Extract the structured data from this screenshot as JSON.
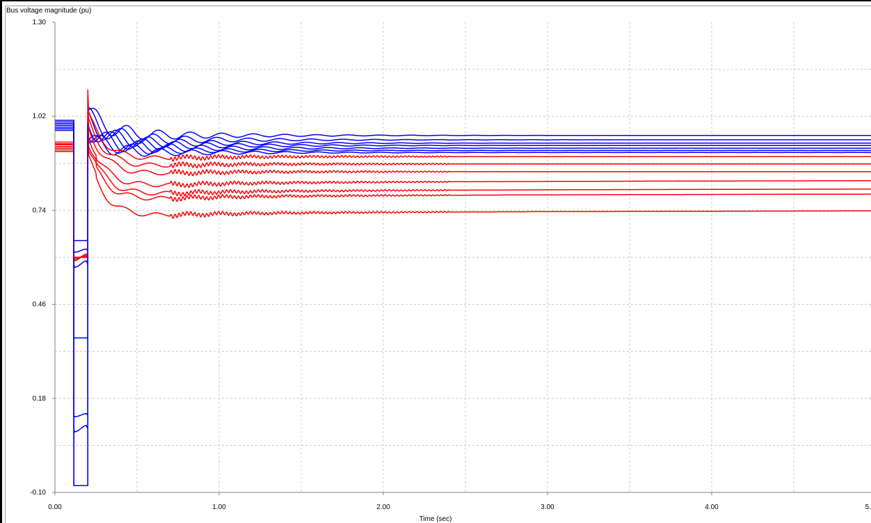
{
  "chart_data": {
    "type": "line",
    "title": "",
    "ylabel": "Bus voltage magnitude (pu)",
    "xlabel": "Time (sec)",
    "xlim": [
      0,
      5
    ],
    "ylim": [
      -0.1,
      1.3
    ],
    "x_ticks": [
      0,
      1,
      2,
      3,
      4,
      5
    ],
    "x_tick_labels": [
      "0.00",
      "1.00",
      "2.00",
      "3.00",
      "4.00",
      "5."
    ],
    "y_ticks": [
      -0.1,
      0.18,
      0.46,
      0.74,
      1.02,
      1.3
    ],
    "y_tick_labels": [
      "-0.10",
      "0.18",
      "0.46",
      "0.74",
      "1.02",
      "1.30"
    ],
    "grid": true,
    "legend": "none",
    "colors": {
      "blue": "#0000ff",
      "red": "#ff0000",
      "grid": "#c8c8c8"
    },
    "series": [
      {
        "color": "#0000ff",
        "pre": 1.008,
        "fault": 0.65,
        "peak": 1.045,
        "osc": 0.03,
        "final": 0.963
      },
      {
        "color": "#0000ff",
        "pre": 1.003,
        "fault": 0.62,
        "peak": 1.03,
        "osc": 0.03,
        "final": 0.95
      },
      {
        "color": "#0000ff",
        "pre": 0.998,
        "fault": 0.58,
        "peak": 1.02,
        "osc": 0.03,
        "final": 0.94
      },
      {
        "color": "#0000ff",
        "pre": 0.993,
        "fault": 0.36,
        "peak": 1.0,
        "osc": 0.03,
        "final": 0.933
      },
      {
        "color": "#0000ff",
        "pre": 0.988,
        "fault": 0.13,
        "peak": 0.99,
        "osc": 0.03,
        "final": 0.925
      },
      {
        "color": "#0000ff",
        "pre": 0.983,
        "fault": 0.09,
        "peak": 0.97,
        "osc": 0.025,
        "final": 0.918
      },
      {
        "color": "#0000ff",
        "pre": 0.978,
        "fault": -0.08,
        "peak": 0.96,
        "osc": 0.025,
        "final": 0.912
      },
      {
        "color": "#ff0000",
        "pre": 0.943,
        "fault": 0.6,
        "peak": 1.1,
        "osc": 0.012,
        "final": 0.9
      },
      {
        "color": "#ff0000",
        "pre": 0.938,
        "fault": 0.6,
        "peak": 1.08,
        "osc": 0.012,
        "final": 0.878
      },
      {
        "color": "#ff0000",
        "pre": 0.935,
        "fault": 0.6,
        "peak": 1.06,
        "osc": 0.012,
        "final": 0.855
      },
      {
        "color": "#ff0000",
        "pre": 0.93,
        "fault": 0.6,
        "peak": 1.04,
        "osc": 0.012,
        "final": 0.83
      },
      {
        "color": "#ff0000",
        "pre": 0.925,
        "fault": 0.6,
        "peak": 1.02,
        "osc": 0.012,
        "final": 0.805
      },
      {
        "color": "#ff0000",
        "pre": 0.92,
        "fault": 0.6,
        "peak": 1.0,
        "osc": 0.012,
        "final": 0.79
      },
      {
        "color": "#ff0000",
        "pre": 0.915,
        "fault": 0.6,
        "peak": 0.98,
        "osc": 0.012,
        "final": 0.74
      }
    ]
  }
}
